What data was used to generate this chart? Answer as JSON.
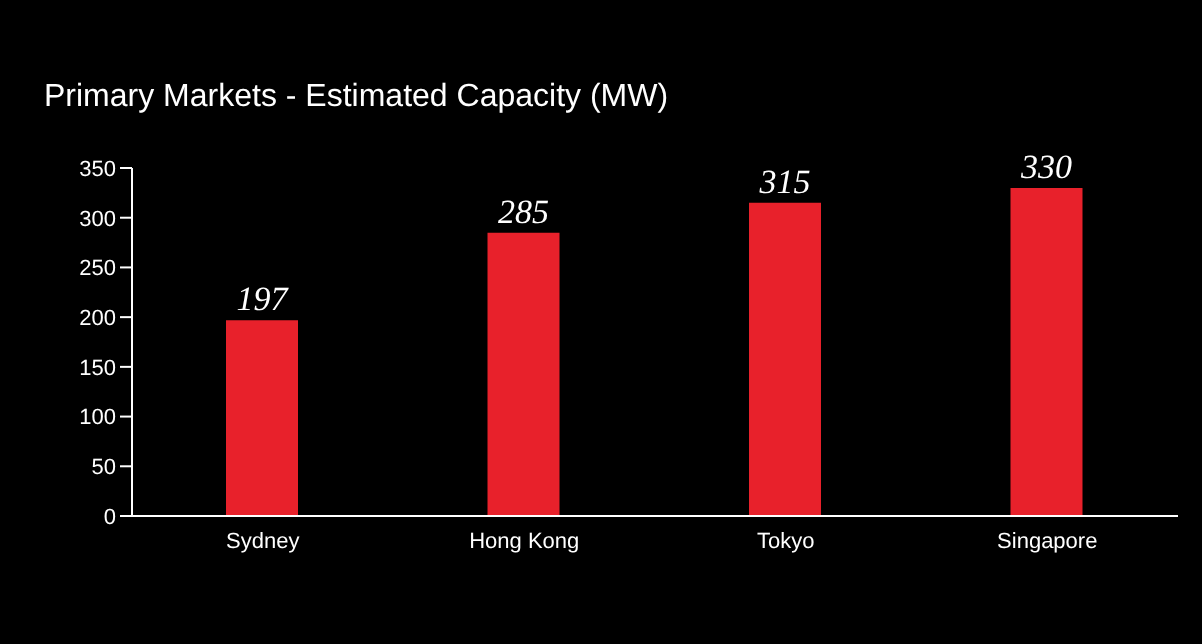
{
  "chart_data": {
    "type": "bar",
    "title": "Primary Markets - Estimated Capacity (MW)",
    "categories": [
      "Sydney",
      "Hong Kong",
      "Tokyo",
      "Singapore"
    ],
    "values": [
      197,
      285,
      315,
      330
    ],
    "color": "#e8212b",
    "ylim": [
      0,
      350
    ],
    "yticks": [
      0,
      50,
      100,
      150,
      200,
      250,
      300,
      350
    ],
    "grid": false,
    "data_labels": true
  }
}
